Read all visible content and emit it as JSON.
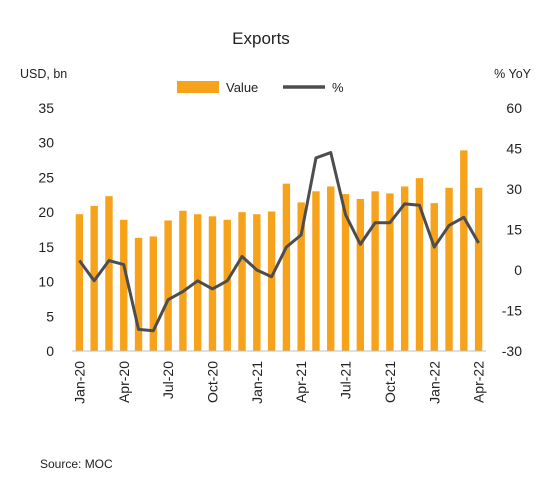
{
  "chart_data": {
    "type": "bar",
    "title": "Exports",
    "source": "Source:  MOC",
    "left_axis": {
      "label": "USD, bn",
      "ylim": [
        0,
        35
      ],
      "ticks": [
        0,
        5,
        10,
        15,
        20,
        25,
        30,
        35
      ]
    },
    "right_axis": {
      "label": "% YoY",
      "ylim": [
        -30,
        60
      ],
      "ticks": [
        -30,
        -15,
        0,
        15,
        30,
        45,
        60
      ]
    },
    "legend_position": "top-center",
    "x": [
      "Jan-20",
      "Feb-20",
      "Mar-20",
      "Apr-20",
      "May-20",
      "Jun-20",
      "Jul-20",
      "Aug-20",
      "Sep-20",
      "Oct-20",
      "Nov-20",
      "Dec-20",
      "Jan-21",
      "Feb-21",
      "Mar-21",
      "Apr-21",
      "May-21",
      "Jun-21",
      "Jul-21",
      "Aug-21",
      "Sep-21",
      "Oct-21",
      "Nov-21",
      "Dec-21",
      "Jan-22",
      "Feb-22",
      "Mar-22",
      "Apr-22"
    ],
    "x_tick_labels": [
      "Jan-20",
      "Apr-20",
      "Jul-20",
      "Oct-20",
      "Jan-21",
      "Apr-21",
      "Jul-21",
      "Oct-21",
      "Jan-22",
      "Apr-22"
    ],
    "series": [
      {
        "name": "Value",
        "type": "bar",
        "axis": "left",
        "color": "#F7A21B",
        "values": [
          19.7,
          20.9,
          22.3,
          18.9,
          16.3,
          16.5,
          18.8,
          20.2,
          19.7,
          19.4,
          18.9,
          20.0,
          19.7,
          20.1,
          24.1,
          21.4,
          23.0,
          23.7,
          22.6,
          21.9,
          23.0,
          22.7,
          23.7,
          24.9,
          21.3,
          23.5,
          28.9,
          23.5
        ]
      },
      {
        "name": "%",
        "type": "line",
        "axis": "right",
        "color": "#4D4D4D",
        "values": [
          3.5,
          -4.0,
          3.5,
          2.0,
          -22.0,
          -22.5,
          -11.0,
          -8.0,
          -4.0,
          -7.0,
          -4.0,
          5.0,
          0.0,
          -2.5,
          8.5,
          13.0,
          41.5,
          43.5,
          20.5,
          9.5,
          17.5,
          17.5,
          24.5,
          24.0,
          8.5,
          16.5,
          19.5,
          10.0
        ]
      }
    ]
  }
}
